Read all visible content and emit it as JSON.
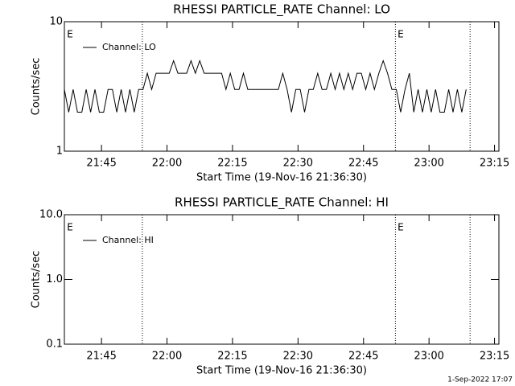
{
  "chart_data": [
    {
      "type": "line",
      "title": "RHESSI PARTICLE_RATE Channel: LO",
      "xlabel": "Start Time (19-Nov-16 21:36:30)",
      "ylabel": "Counts/sec",
      "log_y": true,
      "xlim": [
        0,
        99.5
      ],
      "ylim": [
        1,
        10
      ],
      "xticks": [
        {
          "value": 8.5,
          "label": "21:45"
        },
        {
          "value": 23.5,
          "label": "22:00"
        },
        {
          "value": 38.5,
          "label": "22:15"
        },
        {
          "value": 53.5,
          "label": "22:30"
        },
        {
          "value": 68.5,
          "label": "22:45"
        },
        {
          "value": 83.5,
          "label": "23:00"
        },
        {
          "value": 98.5,
          "label": "23:15"
        }
      ],
      "yticks": [
        1,
        10
      ],
      "vlines": [
        17.85,
        75.8,
        92.9
      ],
      "flags": [
        {
          "label": "E",
          "x": 0.6
        },
        {
          "label": "E",
          "x": 76.3
        }
      ],
      "x": [
        0,
        1,
        2,
        3,
        4,
        5,
        6,
        7,
        8,
        9,
        10,
        11,
        12,
        13,
        14,
        15,
        16,
        17,
        18,
        19,
        20,
        21,
        22,
        23,
        24,
        25,
        26,
        27,
        28,
        29,
        30,
        31,
        32,
        33,
        34,
        35,
        36,
        37,
        38,
        39,
        40,
        41,
        42,
        43,
        44,
        45,
        46,
        47,
        48,
        49,
        50,
        51,
        52,
        53,
        54,
        55,
        56,
        57,
        58,
        59,
        60,
        61,
        62,
        63,
        64,
        65,
        66,
        67,
        68,
        69,
        70,
        71,
        72,
        73,
        74,
        75,
        76,
        77,
        78,
        79,
        80,
        81,
        82,
        83,
        84,
        85,
        86,
        87,
        88,
        89,
        90,
        91,
        92
      ],
      "series": [
        {
          "name": "Channel: LO",
          "color": "#000000",
          "values": [
            3,
            2,
            3,
            2,
            2,
            3,
            2,
            3,
            2,
            2,
            3,
            3,
            2,
            3,
            2,
            3,
            2,
            3,
            3,
            4,
            3,
            4,
            4,
            4,
            4,
            5,
            4,
            4,
            4,
            5,
            4,
            5,
            4,
            4,
            4,
            4,
            4,
            3,
            4,
            3,
            3,
            4,
            3,
            3,
            3,
            3,
            3,
            3,
            3,
            3,
            4,
            3,
            2,
            3,
            3,
            2,
            3,
            3,
            4,
            3,
            3,
            4,
            3,
            4,
            3,
            4,
            3,
            4,
            4,
            3,
            4,
            3,
            4,
            5,
            4,
            3,
            3,
            2,
            3,
            4,
            2,
            3,
            2,
            3,
            2,
            3,
            2,
            2,
            3,
            2,
            3,
            2,
            3
          ]
        }
      ]
    },
    {
      "type": "line",
      "title": "RHESSI PARTICLE_RATE Channel: HI",
      "xlabel": "Start Time (19-Nov-16 21:36:30)",
      "ylabel": "Counts/sec",
      "log_y": true,
      "xlim": [
        0,
        99.5
      ],
      "ylim": [
        0.1,
        10
      ],
      "xticks": [
        {
          "value": 8.5,
          "label": "21:45"
        },
        {
          "value": 23.5,
          "label": "22:00"
        },
        {
          "value": 38.5,
          "label": "22:15"
        },
        {
          "value": 53.5,
          "label": "22:30"
        },
        {
          "value": 68.5,
          "label": "22:45"
        },
        {
          "value": 83.5,
          "label": "23:00"
        },
        {
          "value": 98.5,
          "label": "23:15"
        }
      ],
      "yticks": [
        {
          "value": 0.1,
          "label": "0.1"
        },
        {
          "value": 1,
          "label": "1.0"
        },
        {
          "value": 10,
          "label": "10.0"
        }
      ],
      "vlines": [
        17.85,
        75.8,
        92.9
      ],
      "flags": [
        {
          "label": "E",
          "x": 0.6
        },
        {
          "label": "E",
          "x": 76.3
        }
      ],
      "x": [],
      "series": [
        {
          "name": "Channel: HI",
          "color": "#000000",
          "values": []
        }
      ]
    }
  ],
  "footer": "1-Sep-2022 17:07"
}
